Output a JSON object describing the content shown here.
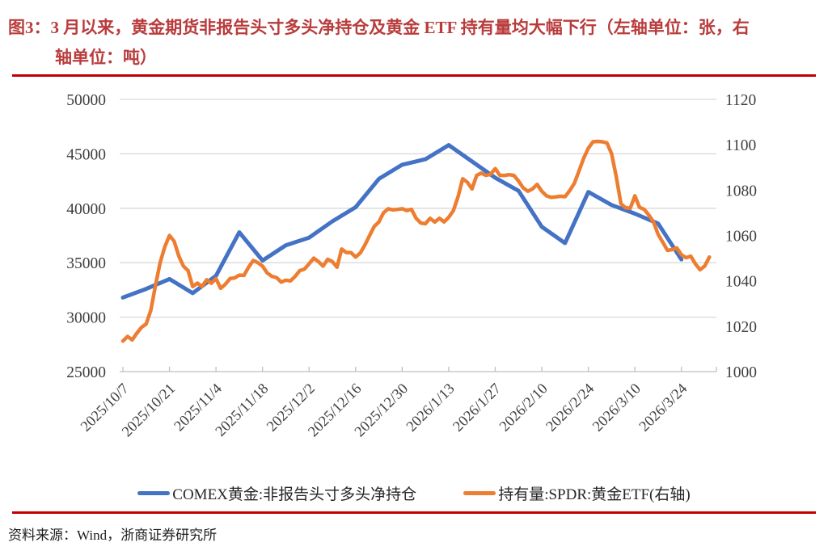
{
  "header": {
    "figure_label": "图3：",
    "title_line1": "3 月以来，黄金期货非报告头寸多头净持仓及黄金 ETF 持有量均大幅下行（左轴单位：张，右",
    "title_line2": "轴单位：吨）"
  },
  "footer": {
    "source": "资料来源：Wind，浙商证券研究所"
  },
  "colors": {
    "title_red": "#B93C3C",
    "rule_red": "#C00000",
    "series_blue": "#4472C4",
    "series_orange": "#ED7D31",
    "gridline": "#D9D9D9",
    "axis_line": "#BFBFBF",
    "axis_text": "#3F3F3F"
  },
  "chart_data": {
    "type": "line",
    "title": "图3：3月以来，黄金期货非报告头寸多头净持仓及黄金ETF持有量均大幅下行（左轴单位：张，右轴单位：吨）",
    "grid": true,
    "legend_position": "bottom",
    "left_axis": {
      "min": 25000,
      "max": 50000,
      "ticks": [
        50000,
        45000,
        40000,
        35000,
        30000,
        25000
      ],
      "unit": "张"
    },
    "right_axis": {
      "min": 1000,
      "max": 1120,
      "ticks": [
        1120,
        1100,
        1080,
        1060,
        1040,
        1020,
        1000
      ],
      "unit": "吨"
    },
    "x_tick_labels": [
      "2025/10/7",
      "2025/10/21",
      "2025/11/4",
      "2025/11/18",
      "2025/12/2",
      "2025/12/16",
      "2025/12/30",
      "2026/1/13",
      "2026/1/27",
      "2026/2/10",
      "2026/2/24",
      "2026/3/10",
      "2026/3/24"
    ],
    "x_ticks_every_n_days": 10,
    "x_domain_trading_days": [
      0,
      127
    ],
    "series": [
      {
        "name": "COMEX黄金:非报告头寸多头净持仓",
        "axis": "left",
        "color": "#4472C4",
        "width": 5,
        "points": [
          [
            0,
            31800
          ],
          [
            5,
            32600
          ],
          [
            10,
            33500
          ],
          [
            15,
            32200
          ],
          [
            20,
            33800
          ],
          [
            25,
            37800
          ],
          [
            30,
            35200
          ],
          [
            35,
            36600
          ],
          [
            40,
            37300
          ],
          [
            45,
            38800
          ],
          [
            50,
            40100
          ],
          [
            55,
            42700
          ],
          [
            60,
            44000
          ],
          [
            65,
            44500
          ],
          [
            70,
            45800
          ],
          [
            75,
            44300
          ],
          [
            80,
            42800
          ],
          [
            85,
            41600
          ],
          [
            90,
            38300
          ],
          [
            95,
            36800
          ],
          [
            100,
            41500
          ],
          [
            105,
            40300
          ],
          [
            110,
            39500
          ],
          [
            115,
            38600
          ],
          [
            120,
            35300
          ]
        ]
      },
      {
        "name": "持有量:SPDR:黄金ETF(右轴)",
        "axis": "right",
        "color": "#ED7D31",
        "width": 4.5,
        "points": [
          [
            0,
            1013.5
          ],
          [
            1,
            1015.5
          ],
          [
            2,
            1014
          ],
          [
            3,
            1017
          ],
          [
            4,
            1019.5
          ],
          [
            5,
            1021
          ],
          [
            6,
            1027
          ],
          [
            7,
            1038
          ],
          [
            8,
            1048
          ],
          [
            9,
            1055
          ],
          [
            10,
            1060
          ],
          [
            11,
            1057.5
          ],
          [
            12,
            1051
          ],
          [
            13,
            1046.5
          ],
          [
            14,
            1044.5
          ],
          [
            15,
            1037.5
          ],
          [
            16,
            1039
          ],
          [
            17,
            1037.5
          ],
          [
            18,
            1040.5
          ],
          [
            19,
            1039
          ],
          [
            20,
            1041
          ],
          [
            21,
            1036.7
          ],
          [
            22,
            1038.5
          ],
          [
            23,
            1041
          ],
          [
            24,
            1041.3
          ],
          [
            25,
            1042.5
          ],
          [
            26,
            1042.4
          ],
          [
            27,
            1046
          ],
          [
            28,
            1049
          ],
          [
            29,
            1048
          ],
          [
            30,
            1046.5
          ],
          [
            31,
            1043.5
          ],
          [
            32,
            1042
          ],
          [
            33,
            1041.5
          ],
          [
            34,
            1039.5
          ],
          [
            35,
            1040.3
          ],
          [
            36,
            1040
          ],
          [
            37,
            1042
          ],
          [
            38,
            1044.5
          ],
          [
            39,
            1045.2
          ],
          [
            40,
            1047.5
          ],
          [
            41,
            1050
          ],
          [
            42,
            1048.5
          ],
          [
            43,
            1046.5
          ],
          [
            44,
            1049.5
          ],
          [
            45,
            1048.5
          ],
          [
            46,
            1046
          ],
          [
            47,
            1054
          ],
          [
            48,
            1052.5
          ],
          [
            49,
            1052.5
          ],
          [
            50,
            1050.5
          ],
          [
            51,
            1052.3
          ],
          [
            52,
            1055.8
          ],
          [
            53,
            1060
          ],
          [
            54,
            1064
          ],
          [
            55,
            1066
          ],
          [
            56,
            1070
          ],
          [
            57,
            1071.8
          ],
          [
            58,
            1071.3
          ],
          [
            59,
            1071.5
          ],
          [
            60,
            1071.8
          ],
          [
            61,
            1071
          ],
          [
            62,
            1071.5
          ],
          [
            63,
            1067.6
          ],
          [
            64,
            1065.5
          ],
          [
            65,
            1065.2
          ],
          [
            66,
            1067.6
          ],
          [
            67,
            1065.9
          ],
          [
            68,
            1067.6
          ],
          [
            69,
            1066
          ],
          [
            70,
            1068
          ],
          [
            71,
            1071
          ],
          [
            72,
            1077
          ],
          [
            73,
            1085
          ],
          [
            74,
            1083.5
          ],
          [
            75,
            1080.5
          ],
          [
            76,
            1086.5
          ],
          [
            77,
            1087.5
          ],
          [
            78,
            1086.5
          ],
          [
            79,
            1087
          ],
          [
            80,
            1089.5
          ],
          [
            81,
            1086.5
          ],
          [
            82,
            1086.5
          ],
          [
            83,
            1086.8
          ],
          [
            84,
            1086.5
          ],
          [
            85,
            1084
          ],
          [
            86,
            1081
          ],
          [
            87,
            1079.5
          ],
          [
            88,
            1080.5
          ],
          [
            89,
            1082.5
          ],
          [
            90,
            1079.5
          ],
          [
            91,
            1077.5
          ],
          [
            92,
            1076.8
          ],
          [
            93,
            1077
          ],
          [
            94,
            1077.3
          ],
          [
            95,
            1077.1
          ],
          [
            96,
            1079.8
          ],
          [
            97,
            1083
          ],
          [
            98,
            1088.5
          ],
          [
            99,
            1094
          ],
          [
            100,
            1098.5
          ],
          [
            101,
            1101.3
          ],
          [
            102,
            1101.5
          ],
          [
            103,
            1101.3
          ],
          [
            104,
            1100.8
          ],
          [
            105,
            1096
          ],
          [
            106,
            1086
          ],
          [
            107,
            1074
          ],
          [
            108,
            1072.2
          ],
          [
            109,
            1072
          ],
          [
            110,
            1077.5
          ],
          [
            111,
            1072.4
          ],
          [
            112,
            1071.5
          ],
          [
            113,
            1069
          ],
          [
            114,
            1066
          ],
          [
            115,
            1060.5
          ],
          [
            116,
            1057
          ],
          [
            117,
            1053.4
          ],
          [
            118,
            1053.8
          ],
          [
            119,
            1054.5
          ],
          [
            120,
            1051.5
          ],
          [
            121,
            1050.2
          ],
          [
            122,
            1050.9
          ],
          [
            123,
            1047.5
          ],
          [
            124,
            1044.9
          ],
          [
            125,
            1046.5
          ],
          [
            126,
            1050.5
          ]
        ]
      }
    ]
  }
}
